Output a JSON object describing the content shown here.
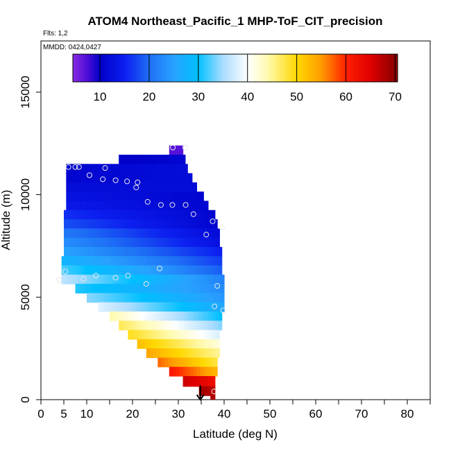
{
  "chart_data": {
    "type": "heatmap",
    "title": "ATOM4 Northeast_Pacific_1 MHP-ToF_CIT_precision",
    "flights_label": "Flts: 1,2",
    "mmdd_label": "MMDD: 0424,0427",
    "xlabel": "Latitude (deg N)",
    "ylabel": "Altitude (m)",
    "xlim": [
      0,
      85
    ],
    "ylim": [
      0,
      17500
    ],
    "x_ticks": [
      0,
      5,
      10,
      20,
      30,
      40,
      50,
      60,
      70,
      80
    ],
    "x_minor_ticks": [
      15,
      25,
      35,
      45,
      55,
      65,
      75,
      85
    ],
    "y_ticks": [
      0,
      5000,
      10000,
      15000
    ],
    "colorbar": {
      "range": [
        4.5,
        70.5
      ],
      "ticks": [
        10,
        20,
        30,
        40,
        50,
        60,
        70
      ],
      "stops": [
        {
          "v": 4.5,
          "c": "#8a2be2"
        },
        {
          "v": 7.5,
          "c": "#4b0dd8"
        },
        {
          "v": 10,
          "c": "#0000c8"
        },
        {
          "v": 15,
          "c": "#0c1ef0"
        },
        {
          "v": 20,
          "c": "#1e6ef5"
        },
        {
          "v": 25,
          "c": "#28a2ff"
        },
        {
          "v": 30,
          "c": "#00c0ff"
        },
        {
          "v": 35,
          "c": "#aadcff"
        },
        {
          "v": 40,
          "c": "#ffffff"
        },
        {
          "v": 44,
          "c": "#fffab0"
        },
        {
          "v": 50,
          "c": "#ffd800"
        },
        {
          "v": 55,
          "c": "#ff9c00"
        },
        {
          "v": 60,
          "c": "#ff2000"
        },
        {
          "v": 65,
          "c": "#e00000"
        },
        {
          "v": 70,
          "c": "#8b0000"
        }
      ]
    },
    "bands": [
      {
        "alt_top": 12400,
        "alt_bottom": 11950,
        "lat_min": 28.0,
        "lat_max": 31.0,
        "v_start": 7,
        "v_end": 7
      },
      {
        "alt_top": 11950,
        "alt_bottom": 11500,
        "lat_min": 17.0,
        "lat_max": 31.5,
        "v_start": 10,
        "v_end": 11
      },
      {
        "alt_top": 11500,
        "alt_bottom": 11050,
        "lat_min": 5.5,
        "lat_max": 32.0,
        "v_start": 11,
        "v_end": 12
      },
      {
        "alt_top": 11050,
        "alt_bottom": 10600,
        "lat_min": 5.5,
        "lat_max": 33.0,
        "v_start": 11,
        "v_end": 12
      },
      {
        "alt_top": 10600,
        "alt_bottom": 10150,
        "lat_min": 5.5,
        "lat_max": 34.0,
        "v_start": 12,
        "v_end": 12
      },
      {
        "alt_top": 10150,
        "alt_bottom": 9700,
        "lat_min": 5.5,
        "lat_max": 35.5,
        "v_start": 13,
        "v_end": 11
      },
      {
        "alt_top": 9700,
        "alt_bottom": 9250,
        "lat_min": 5.5,
        "lat_max": 36.5,
        "v_start": 14,
        "v_end": 11
      },
      {
        "alt_top": 9250,
        "alt_bottom": 8800,
        "lat_min": 5.0,
        "lat_max": 38.0,
        "v_start": 16,
        "v_end": 11
      },
      {
        "alt_top": 8800,
        "alt_bottom": 8350,
        "lat_min": 5.0,
        "lat_max": 38.5,
        "v_start": 18,
        "v_end": 11
      },
      {
        "alt_top": 8350,
        "alt_bottom": 7900,
        "lat_min": 5.0,
        "lat_max": 39.0,
        "v_start": 21,
        "v_end": 12
      },
      {
        "alt_top": 7900,
        "alt_bottom": 7450,
        "lat_min": 5.0,
        "lat_max": 39.0,
        "v_start": 23,
        "v_end": 13
      },
      {
        "alt_top": 7450,
        "alt_bottom": 7000,
        "lat_min": 5.0,
        "lat_max": 39.5,
        "v_start": 25,
        "v_end": 15
      },
      {
        "alt_top": 7000,
        "alt_bottom": 6550,
        "lat_min": 4.5,
        "lat_max": 39.5,
        "v_start": 28,
        "v_end": 17
      },
      {
        "alt_top": 6550,
        "alt_bottom": 6100,
        "lat_min": 4.5,
        "lat_max": 39.5,
        "v_start": 32,
        "v_end": 19
      },
      {
        "alt_top": 6100,
        "alt_bottom": 5650,
        "lat_min": 4.5,
        "lat_max": 40.0,
        "v_start": 36,
        "v_end": 22
      },
      {
        "alt_top": 5650,
        "alt_bottom": 5200,
        "lat_min": 7.5,
        "lat_max": 40.0,
        "v_start": 31,
        "v_end": 23
      },
      {
        "alt_top": 5200,
        "alt_bottom": 4750,
        "lat_min": 10.0,
        "lat_max": 40.0,
        "v_start": 34,
        "v_end": 24
      },
      {
        "alt_top": 4750,
        "alt_bottom": 4300,
        "lat_min": 12.5,
        "lat_max": 40.0,
        "v_start": 38,
        "v_end": 26
      },
      {
        "alt_top": 4300,
        "alt_bottom": 3850,
        "lat_min": 15.0,
        "lat_max": 39.5,
        "v_start": 44,
        "v_end": 30
      },
      {
        "alt_top": 3850,
        "alt_bottom": 3400,
        "lat_min": 17.0,
        "lat_max": 39.5,
        "v_start": 47,
        "v_end": 34
      },
      {
        "alt_top": 3400,
        "alt_bottom": 2950,
        "lat_min": 19.0,
        "lat_max": 39.0,
        "v_start": 49,
        "v_end": 38
      },
      {
        "alt_top": 2950,
        "alt_bottom": 2500,
        "lat_min": 21.0,
        "lat_max": 39.0,
        "v_start": 52,
        "v_end": 42
      },
      {
        "alt_top": 2500,
        "alt_bottom": 2050,
        "lat_min": 23.0,
        "lat_max": 39.0,
        "v_start": 54,
        "v_end": 45
      },
      {
        "alt_top": 2050,
        "alt_bottom": 1600,
        "lat_min": 25.5,
        "lat_max": 38.5,
        "v_start": 57,
        "v_end": 48
      },
      {
        "alt_top": 1600,
        "alt_bottom": 1150,
        "lat_min": 28.0,
        "lat_max": 38.5,
        "v_start": 61,
        "v_end": 53
      },
      {
        "alt_top": 1150,
        "alt_bottom": 650,
        "lat_min": 31.0,
        "lat_max": 38.0,
        "v_start": 66,
        "v_end": 63
      },
      {
        "alt_top": 650,
        "alt_bottom": 200,
        "lat_min": 34.5,
        "lat_max": 38.0,
        "v_start": 69,
        "v_end": 67
      },
      {
        "alt_top": 200,
        "alt_bottom": 0,
        "lat_min": 37.0,
        "lat_max": 38.0,
        "v_start": 68,
        "v_end": 68
      }
    ],
    "observations": [
      {
        "lat": 28.8,
        "alt": 12300
      },
      {
        "lat": 31.5,
        "alt": 12300
      },
      {
        "lat": 6.0,
        "alt": 11350
      },
      {
        "lat": 7.5,
        "alt": 11350
      },
      {
        "lat": 8.3,
        "alt": 11350
      },
      {
        "lat": 14.0,
        "alt": 11300
      },
      {
        "lat": 10.6,
        "alt": 10950
      },
      {
        "lat": 13.5,
        "alt": 10750
      },
      {
        "lat": 16.3,
        "alt": 10700
      },
      {
        "lat": 18.8,
        "alt": 10650
      },
      {
        "lat": 21.1,
        "alt": 10600
      },
      {
        "lat": 20.8,
        "alt": 10350
      },
      {
        "lat": 23.3,
        "alt": 9650
      },
      {
        "lat": 26.2,
        "alt": 9500
      },
      {
        "lat": 28.7,
        "alt": 9500
      },
      {
        "lat": 31.6,
        "alt": 9500
      },
      {
        "lat": 33.3,
        "alt": 9050
      },
      {
        "lat": 37.5,
        "alt": 8700
      },
      {
        "lat": 39.5,
        "alt": 8400
      },
      {
        "lat": 36.1,
        "alt": 8050
      },
      {
        "lat": 25.9,
        "alt": 6400
      },
      {
        "lat": 5.3,
        "alt": 6250
      },
      {
        "lat": 12.0,
        "alt": 6050
      },
      {
        "lat": 16.3,
        "alt": 5950
      },
      {
        "lat": 19.0,
        "alt": 6050
      },
      {
        "lat": 9.3,
        "alt": 5900
      },
      {
        "lat": 4.0,
        "alt": 5850
      },
      {
        "lat": 23.0,
        "alt": 5650
      },
      {
        "lat": 38.5,
        "alt": 5550
      },
      {
        "lat": 37.9,
        "alt": 4550
      },
      {
        "lat": 39.8,
        "alt": 4350
      },
      {
        "lat": 37.8,
        "alt": 400
      }
    ],
    "arrow": {
      "lat": 34.8,
      "alt_from": 700,
      "alt_to": 0
    }
  }
}
